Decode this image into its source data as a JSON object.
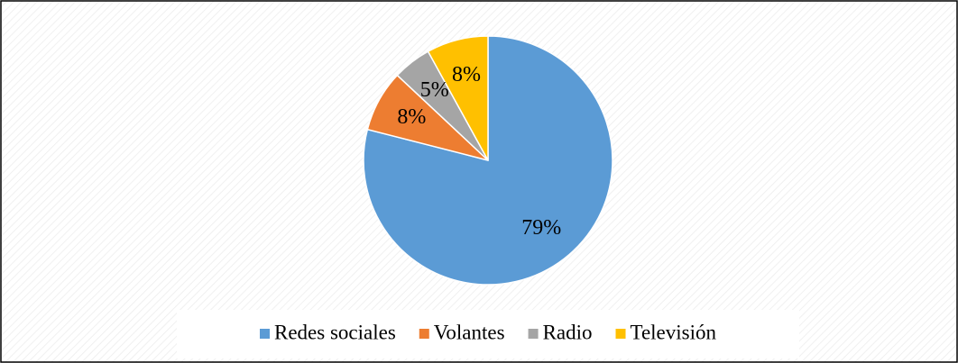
{
  "chart_data": {
    "type": "pie",
    "categories": [
      "Redes sociales",
      "Volantes",
      "Radio",
      "Televisión"
    ],
    "values": [
      79,
      8,
      5,
      8
    ],
    "value_labels": [
      "79%",
      "8%",
      "5%",
      "8%"
    ],
    "colors": [
      "#5b9bd5",
      "#ed7d31",
      "#a5a5a5",
      "#ffc000"
    ],
    "legend": "bottom"
  }
}
